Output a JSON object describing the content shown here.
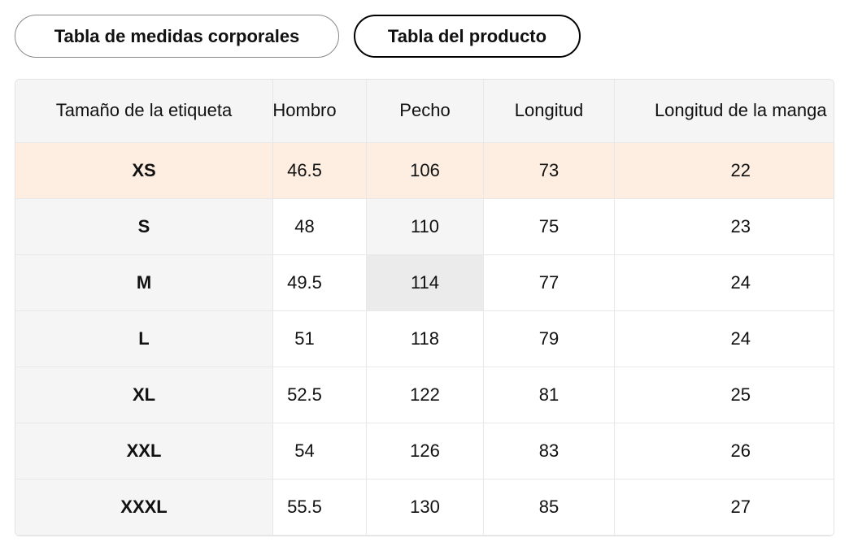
{
  "tabs": [
    "Tabla de medidas corporales",
    "Tabla del producto"
  ],
  "table": {
    "headers": [
      "Tamaño de la etiqueta",
      "Hombro",
      "Pecho",
      "Longitud",
      "Longitud de la manga"
    ],
    "rows": [
      [
        "XS",
        46.5,
        106,
        73,
        22
      ],
      [
        "S",
        48,
        110,
        75,
        23
      ],
      [
        "M",
        49.5,
        114,
        77,
        24
      ],
      [
        "L",
        51,
        118,
        79,
        24
      ],
      [
        "XL",
        52.5,
        122,
        81,
        25
      ],
      [
        "XXL",
        54,
        126,
        83,
        26
      ],
      [
        "XXXL",
        55.5,
        130,
        85,
        27
      ]
    ]
  }
}
